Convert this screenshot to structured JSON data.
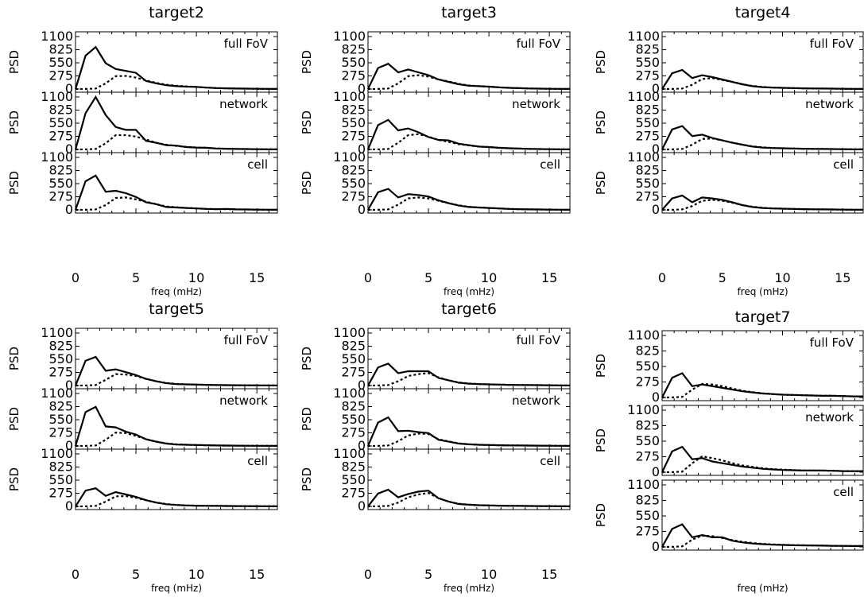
{
  "chart_data": [
    {
      "type": "line",
      "title": "target2",
      "xlabel": "freq (mHz)",
      "ylabel": "PSD",
      "xlim": [
        0,
        16.7
      ],
      "ylim": [
        0,
        1100
      ],
      "xticks": [
        "0",
        "5",
        "10",
        "15"
      ],
      "yticks": [
        "0",
        "275",
        "550",
        "825",
        "1100"
      ],
      "x": [
        0,
        0.83,
        1.67,
        2.5,
        3.33,
        4.17,
        5.0,
        5.83,
        6.67,
        7.5,
        8.33,
        9.17,
        10.0,
        10.83,
        11.67,
        12.5,
        13.33,
        14.17,
        15.0,
        15.83,
        16.67
      ],
      "panels": [
        {
          "label": "full FoV",
          "solid": [
            0,
            700,
            880,
            540,
            420,
            380,
            340,
            170,
            120,
            80,
            60,
            50,
            45,
            30,
            20,
            15,
            10,
            8,
            5,
            3,
            2
          ],
          "dotted": [
            0,
            2,
            10,
            120,
            270,
            275,
            240,
            180,
            130,
            90,
            70,
            55,
            45,
            30,
            20,
            15,
            10,
            8,
            5,
            3,
            2
          ]
        },
        {
          "label": "network",
          "solid": [
            0,
            760,
            1100,
            720,
            470,
            410,
            410,
            180,
            140,
            90,
            80,
            50,
            40,
            35,
            20,
            15,
            10,
            8,
            5,
            3,
            2
          ],
          "dotted": [
            0,
            2,
            10,
            130,
            300,
            300,
            270,
            210,
            140,
            100,
            75,
            55,
            40,
            35,
            20,
            15,
            10,
            8,
            5,
            3,
            2
          ]
        },
        {
          "label": "cell",
          "solid": [
            0,
            600,
            720,
            380,
            400,
            350,
            270,
            160,
            120,
            60,
            50,
            40,
            30,
            20,
            15,
            20,
            10,
            8,
            5,
            3,
            2
          ],
          "dotted": [
            0,
            2,
            10,
            100,
            250,
            260,
            220,
            170,
            120,
            70,
            55,
            40,
            30,
            20,
            15,
            15,
            10,
            8,
            5,
            3,
            2
          ]
        }
      ]
    },
    {
      "type": "line",
      "title": "target3",
      "xlabel": "freq (mHz)",
      "ylabel": "PSD",
      "xlim": [
        0,
        16.7
      ],
      "ylim": [
        0,
        1100
      ],
      "xticks": [
        "0",
        "5",
        "10",
        "15"
      ],
      "yticks": [
        "0",
        "275",
        "550",
        "825",
        "1100"
      ],
      "x": [
        0,
        0.83,
        1.67,
        2.5,
        3.33,
        4.17,
        5.0,
        5.83,
        6.67,
        7.5,
        8.33,
        9.17,
        10.0,
        10.83,
        11.67,
        12.5,
        13.33,
        14.17,
        15.0,
        15.83,
        16.67
      ],
      "panels": [
        {
          "label": "full FoV",
          "solid": [
            0,
            440,
            530,
            350,
            410,
            350,
            290,
            200,
            150,
            100,
            70,
            60,
            50,
            35,
            25,
            18,
            12,
            8,
            5,
            3,
            2
          ],
          "dotted": [
            0,
            2,
            10,
            120,
            270,
            290,
            260,
            200,
            160,
            110,
            75,
            60,
            50,
            35,
            25,
            18,
            12,
            8,
            5,
            3,
            2
          ]
        },
        {
          "label": "network",
          "solid": [
            0,
            510,
            620,
            400,
            440,
            360,
            260,
            200,
            190,
            120,
            90,
            60,
            50,
            35,
            25,
            18,
            12,
            8,
            5,
            3,
            2
          ],
          "dotted": [
            0,
            2,
            10,
            140,
            300,
            320,
            270,
            200,
            160,
            110,
            85,
            60,
            50,
            35,
            25,
            18,
            12,
            8,
            5,
            3,
            2
          ]
        },
        {
          "label": "cell",
          "solid": [
            0,
            370,
            440,
            260,
            330,
            310,
            280,
            200,
            140,
            90,
            60,
            50,
            40,
            30,
            20,
            14,
            10,
            8,
            5,
            3,
            2
          ],
          "dotted": [
            0,
            2,
            10,
            110,
            240,
            260,
            240,
            190,
            140,
            95,
            65,
            50,
            40,
            30,
            20,
            14,
            10,
            8,
            5,
            3,
            2
          ]
        }
      ]
    },
    {
      "type": "line",
      "title": "target4",
      "xlabel": "freq (mHz)",
      "ylabel": "PSD",
      "xlim": [
        0,
        16.7
      ],
      "ylim": [
        0,
        1100
      ],
      "xticks": [
        "0",
        "5",
        "10",
        "15"
      ],
      "yticks": [
        "0",
        "275",
        "550",
        "825",
        "1100"
      ],
      "x": [
        0,
        0.83,
        1.67,
        2.5,
        3.33,
        4.17,
        5.0,
        5.83,
        6.67,
        7.5,
        8.33,
        9.17,
        10.0,
        10.83,
        11.67,
        12.5,
        13.33,
        14.17,
        15.0,
        15.83,
        16.67
      ],
      "panels": [
        {
          "label": "full FoV",
          "solid": [
            0,
            330,
            400,
            230,
            290,
            250,
            200,
            150,
            100,
            60,
            40,
            30,
            25,
            20,
            15,
            12,
            10,
            8,
            5,
            3,
            2
          ],
          "dotted": [
            0,
            2,
            10,
            90,
            210,
            230,
            190,
            150,
            100,
            65,
            45,
            30,
            25,
            20,
            15,
            12,
            10,
            8,
            5,
            3,
            2
          ]
        },
        {
          "label": "network",
          "solid": [
            0,
            420,
            490,
            280,
            310,
            240,
            190,
            140,
            100,
            60,
            40,
            30,
            25,
            20,
            15,
            12,
            10,
            8,
            5,
            3,
            2
          ],
          "dotted": [
            0,
            2,
            10,
            100,
            220,
            230,
            190,
            145,
            100,
            65,
            45,
            30,
            25,
            20,
            15,
            12,
            10,
            8,
            5,
            3,
            2
          ]
        },
        {
          "label": "cell",
          "solid": [
            0,
            240,
            300,
            160,
            260,
            240,
            210,
            160,
            100,
            60,
            40,
            30,
            25,
            20,
            15,
            12,
            10,
            8,
            5,
            3,
            2
          ],
          "dotted": [
            0,
            2,
            10,
            80,
            190,
            210,
            190,
            150,
            100,
            65,
            45,
            30,
            25,
            20,
            15,
            12,
            10,
            8,
            5,
            3,
            2
          ]
        }
      ]
    },
    {
      "type": "line",
      "title": "target5",
      "xlabel": "freq (mHz)",
      "ylabel": "PSD",
      "xlim": [
        0,
        16.7
      ],
      "ylim": [
        0,
        1100
      ],
      "xticks": [
        "0",
        "5",
        "10",
        "15"
      ],
      "yticks": [
        "0",
        "275",
        "550",
        "825",
        "1100"
      ],
      "x": [
        0,
        0.83,
        1.67,
        2.5,
        3.33,
        4.17,
        5.0,
        5.83,
        6.67,
        7.5,
        8.33,
        9.17,
        10.0,
        10.83,
        11.67,
        12.5,
        13.33,
        14.17,
        15.0,
        15.83,
        16.67
      ],
      "panels": [
        {
          "label": "full FoV",
          "solid": [
            0,
            520,
            600,
            310,
            340,
            280,
            220,
            140,
            90,
            50,
            30,
            25,
            20,
            15,
            10,
            8,
            6,
            5,
            4,
            3,
            2
          ],
          "dotted": [
            0,
            2,
            10,
            120,
            240,
            230,
            200,
            140,
            90,
            55,
            35,
            25,
            20,
            15,
            10,
            8,
            6,
            5,
            4,
            3,
            2
          ]
        },
        {
          "label": "network",
          "solid": [
            0,
            710,
            820,
            410,
            390,
            300,
            240,
            140,
            90,
            50,
            30,
            25,
            20,
            15,
            10,
            8,
            6,
            5,
            4,
            3,
            2
          ],
          "dotted": [
            0,
            2,
            10,
            130,
            280,
            270,
            210,
            145,
            90,
            55,
            35,
            25,
            20,
            15,
            10,
            8,
            6,
            5,
            4,
            3,
            2
          ]
        },
        {
          "label": "cell",
          "solid": [
            0,
            330,
            380,
            220,
            300,
            250,
            200,
            130,
            80,
            45,
            30,
            20,
            15,
            12,
            10,
            8,
            6,
            5,
            4,
            3,
            2
          ],
          "dotted": [
            0,
            2,
            10,
            100,
            210,
            215,
            180,
            130,
            80,
            50,
            32,
            20,
            15,
            12,
            10,
            8,
            6,
            5,
            4,
            3,
            2
          ]
        }
      ]
    },
    {
      "type": "line",
      "title": "target6",
      "xlabel": "freq (mHz)",
      "ylabel": "PSD",
      "xlim": [
        0,
        16.7
      ],
      "ylim": [
        0,
        1100
      ],
      "xticks": [
        "0",
        "5",
        "10",
        "15"
      ],
      "yticks": [
        "0",
        "275",
        "550",
        "825",
        "1100"
      ],
      "x": [
        0,
        0.83,
        1.67,
        2.5,
        3.33,
        4.17,
        5.0,
        5.83,
        6.67,
        7.5,
        8.33,
        9.17,
        10.0,
        10.83,
        11.67,
        12.5,
        13.33,
        14.17,
        15.0,
        15.83,
        16.67
      ],
      "panels": [
        {
          "label": "full FoV",
          "solid": [
            0,
            380,
            460,
            260,
            300,
            300,
            300,
            160,
            110,
            60,
            40,
            30,
            25,
            20,
            15,
            12,
            10,
            8,
            5,
            3,
            2
          ],
          "dotted": [
            0,
            2,
            10,
            90,
            200,
            240,
            260,
            170,
            110,
            65,
            45,
            30,
            25,
            20,
            15,
            12,
            10,
            8,
            5,
            3,
            2
          ]
        },
        {
          "label": "network",
          "solid": [
            0,
            490,
            600,
            310,
            320,
            290,
            270,
            130,
            90,
            50,
            35,
            25,
            20,
            15,
            12,
            10,
            8,
            6,
            5,
            3,
            2
          ],
          "dotted": [
            0,
            2,
            10,
            100,
            220,
            260,
            250,
            140,
            95,
            55,
            35,
            25,
            20,
            15,
            12,
            10,
            8,
            6,
            5,
            3,
            2
          ]
        },
        {
          "label": "cell",
          "solid": [
            0,
            270,
            350,
            190,
            260,
            310,
            330,
            170,
            100,
            50,
            35,
            25,
            20,
            15,
            12,
            10,
            8,
            6,
            5,
            3,
            2
          ],
          "dotted": [
            0,
            2,
            10,
            80,
            190,
            250,
            280,
            170,
            100,
            55,
            35,
            25,
            20,
            15,
            12,
            10,
            8,
            6,
            5,
            3,
            2
          ]
        }
      ]
    },
    {
      "type": "line",
      "title": "target7",
      "xlabel": "freq (mHz)",
      "ylabel": "PSD",
      "xlim": [
        0,
        16.7
      ],
      "ylim": [
        0,
        1100
      ],
      "xticks": [],
      "yticks": [
        "0",
        "275",
        "550",
        "825",
        "1100"
      ],
      "x": [
        0,
        0.83,
        1.67,
        2.5,
        3.33,
        4.17,
        5.0,
        5.83,
        6.67,
        7.5,
        8.33,
        9.17,
        10.0,
        10.83,
        11.67,
        12.5,
        13.33,
        14.17,
        15.0,
        15.83,
        16.67
      ],
      "panels": [
        {
          "label": "full FoV",
          "solid": [
            0,
            350,
            430,
            200,
            230,
            200,
            170,
            140,
            110,
            90,
            70,
            60,
            50,
            45,
            40,
            35,
            30,
            30,
            25,
            20,
            20
          ],
          "dotted": [
            0,
            2,
            10,
            140,
            240,
            230,
            200,
            160,
            120,
            95,
            75,
            60,
            50,
            45,
            40,
            35,
            30,
            30,
            25,
            20,
            20
          ]
        },
        {
          "label": "network",
          "solid": [
            0,
            370,
            450,
            230,
            250,
            190,
            160,
            130,
            100,
            80,
            60,
            50,
            40,
            35,
            30,
            30,
            30,
            25,
            20,
            18,
            18
          ],
          "dotted": [
            0,
            2,
            10,
            160,
            280,
            250,
            210,
            160,
            120,
            95,
            70,
            55,
            45,
            38,
            32,
            30,
            28,
            25,
            20,
            18,
            18
          ]
        },
        {
          "label": "cell",
          "solid": [
            0,
            320,
            400,
            170,
            210,
            170,
            170,
            110,
            80,
            60,
            50,
            40,
            35,
            30,
            28,
            25,
            22,
            20,
            18,
            16,
            15
          ],
          "dotted": [
            0,
            2,
            10,
            130,
            200,
            190,
            160,
            120,
            90,
            70,
            55,
            45,
            38,
            32,
            28,
            25,
            22,
            20,
            18,
            16,
            15
          ]
        }
      ]
    }
  ]
}
